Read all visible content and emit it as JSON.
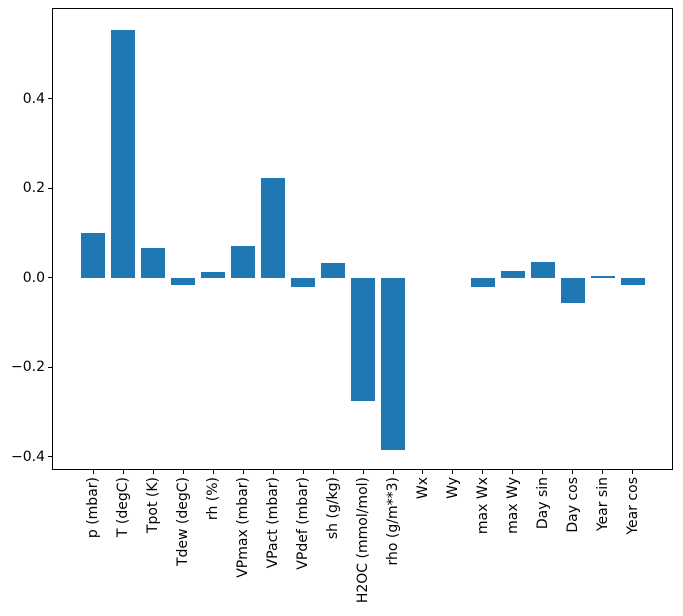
{
  "figure": {
    "background": "#ffffff",
    "frame_color": "#000000"
  },
  "chart_data": {
    "type": "bar",
    "title": "",
    "xlabel": "",
    "ylabel": "",
    "grid": false,
    "legend": null,
    "bar_color": "#1f77b4",
    "categories": [
      "p (mbar)",
      "T (degC)",
      "Tpot (K)",
      "Tdew (degC)",
      "rh (%)",
      "VPmax (mbar)",
      "VPact (mbar)",
      "VPdef (mbar)",
      "sh (g/kg)",
      "H2OC (mmol/mol)",
      "rho (g/m**3)",
      "Wx",
      "Wy",
      "max Wx",
      "max Wy",
      "Day sin",
      "Day cos",
      "Year sin",
      "Year cos"
    ],
    "values": [
      0.101,
      0.554,
      0.066,
      -0.016,
      0.013,
      0.07,
      0.222,
      -0.02,
      0.032,
      -0.276,
      -0.385,
      0.0,
      0.0,
      -0.021,
      0.015,
      0.035,
      -0.057,
      0.004,
      -0.016
    ],
    "yticks": {
      "values": [
        0.4,
        0.2,
        0.0,
        -0.2,
        -0.4
      ],
      "labels": [
        "0.4",
        "0.2",
        "0.0",
        "−0.2",
        "−0.4"
      ]
    },
    "ylim": [
      -0.427,
      0.602
    ],
    "x_tick_rotation_deg": 90
  }
}
